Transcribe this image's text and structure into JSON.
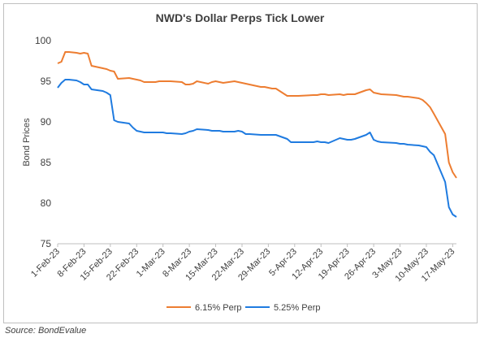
{
  "source_text": "Source: BondEvalue",
  "colors": {
    "series_1": "#ED7D31",
    "series_2": "#1F7BE0",
    "axis": "#bfbfbf"
  },
  "chart_data": {
    "type": "line",
    "title": "NWD's Dollar Perps Tick Lower",
    "xlabel": "",
    "ylabel": "Bond Prices",
    "ylim": [
      75,
      100
    ],
    "yticks": [
      75,
      80,
      85,
      90,
      95,
      100
    ],
    "xlim": [
      "2023-02-01",
      "2023-05-18"
    ],
    "x_tick_labels": [
      "1-Feb-23",
      "8-Feb-23",
      "15-Feb-23",
      "22-Feb-23",
      "1-Mar-23",
      "8-Mar-23",
      "15-Mar-23",
      "22-Mar-23",
      "29-Mar-23",
      "5-Apr-23",
      "12-Apr-23",
      "19-Apr-23",
      "26-Apr-23",
      "3-May-23",
      "10-May-23",
      "17-May-23"
    ],
    "grid": false,
    "legend_position": "bottom",
    "series": [
      {
        "name": "6.15% Perp",
        "x": [
          "2023-02-01",
          "2023-02-02",
          "2023-02-03",
          "2023-02-04",
          "2023-02-06",
          "2023-02-07",
          "2023-02-08",
          "2023-02-09",
          "2023-02-10",
          "2023-02-13",
          "2023-02-14",
          "2023-02-15",
          "2023-02-16",
          "2023-02-17",
          "2023-02-20",
          "2023-02-21",
          "2023-02-22",
          "2023-02-23",
          "2023-02-24",
          "2023-02-27",
          "2023-02-28",
          "2023-03-01",
          "2023-03-02",
          "2023-03-03",
          "2023-03-06",
          "2023-03-07",
          "2023-03-08",
          "2023-03-09",
          "2023-03-10",
          "2023-03-13",
          "2023-03-14",
          "2023-03-15",
          "2023-03-16",
          "2023-03-17",
          "2023-03-20",
          "2023-03-21",
          "2023-03-22",
          "2023-03-23",
          "2023-03-24",
          "2023-03-27",
          "2023-03-28",
          "2023-03-29",
          "2023-03-30",
          "2023-03-31",
          "2023-04-03",
          "2023-04-04",
          "2023-04-05",
          "2023-04-06",
          "2023-04-10",
          "2023-04-11",
          "2023-04-12",
          "2023-04-13",
          "2023-04-14",
          "2023-04-17",
          "2023-04-18",
          "2023-04-19",
          "2023-04-20",
          "2023-04-21",
          "2023-04-24",
          "2023-04-25",
          "2023-04-26",
          "2023-04-27",
          "2023-04-28",
          "2023-05-02",
          "2023-05-03",
          "2023-05-04",
          "2023-05-05",
          "2023-05-08",
          "2023-05-09",
          "2023-05-10",
          "2023-05-11",
          "2023-05-12",
          "2023-05-15",
          "2023-05-16",
          "2023-05-17",
          "2023-05-18"
        ],
        "y": [
          97.2,
          97.4,
          98.6,
          98.6,
          98.5,
          98.4,
          98.5,
          98.4,
          96.9,
          96.6,
          96.5,
          96.3,
          96.2,
          95.3,
          95.4,
          95.3,
          95.2,
          95.1,
          94.9,
          94.9,
          95.0,
          95.0,
          95.0,
          95.0,
          94.9,
          94.6,
          94.6,
          94.7,
          95.0,
          94.7,
          94.9,
          95.0,
          94.9,
          94.8,
          95.0,
          94.9,
          94.8,
          94.7,
          94.6,
          94.3,
          94.3,
          94.2,
          94.1,
          94.1,
          93.2,
          93.2,
          93.2,
          93.2,
          93.3,
          93.3,
          93.4,
          93.4,
          93.3,
          93.4,
          93.3,
          93.4,
          93.4,
          93.4,
          93.9,
          94.0,
          93.6,
          93.5,
          93.4,
          93.3,
          93.2,
          93.1,
          93.1,
          92.9,
          92.7,
          92.3,
          91.8,
          91.0,
          88.5,
          85.0,
          83.8,
          83.1
        ]
      },
      {
        "name": "5.25% Perp",
        "x": [
          "2023-02-01",
          "2023-02-02",
          "2023-02-03",
          "2023-02-04",
          "2023-02-06",
          "2023-02-07",
          "2023-02-08",
          "2023-02-09",
          "2023-02-10",
          "2023-02-13",
          "2023-02-14",
          "2023-02-15",
          "2023-02-16",
          "2023-02-17",
          "2023-02-20",
          "2023-02-21",
          "2023-02-22",
          "2023-02-23",
          "2023-02-24",
          "2023-02-27",
          "2023-02-28",
          "2023-03-01",
          "2023-03-02",
          "2023-03-03",
          "2023-03-06",
          "2023-03-07",
          "2023-03-08",
          "2023-03-09",
          "2023-03-10",
          "2023-03-13",
          "2023-03-14",
          "2023-03-15",
          "2023-03-16",
          "2023-03-17",
          "2023-03-20",
          "2023-03-21",
          "2023-03-22",
          "2023-03-23",
          "2023-03-24",
          "2023-03-27",
          "2023-03-28",
          "2023-03-29",
          "2023-03-30",
          "2023-03-31",
          "2023-04-03",
          "2023-04-04",
          "2023-04-05",
          "2023-04-06",
          "2023-04-10",
          "2023-04-11",
          "2023-04-12",
          "2023-04-13",
          "2023-04-14",
          "2023-04-17",
          "2023-04-18",
          "2023-04-19",
          "2023-04-20",
          "2023-04-21",
          "2023-04-24",
          "2023-04-25",
          "2023-04-26",
          "2023-04-27",
          "2023-04-28",
          "2023-05-02",
          "2023-05-03",
          "2023-05-04",
          "2023-05-05",
          "2023-05-08",
          "2023-05-09",
          "2023-05-10",
          "2023-05-11",
          "2023-05-12",
          "2023-05-15",
          "2023-05-16",
          "2023-05-17",
          "2023-05-18"
        ],
        "y": [
          94.2,
          94.8,
          95.2,
          95.2,
          95.1,
          94.9,
          94.6,
          94.6,
          94.0,
          93.8,
          93.6,
          93.3,
          90.2,
          90.0,
          89.8,
          89.3,
          88.9,
          88.8,
          88.7,
          88.7,
          88.7,
          88.7,
          88.6,
          88.6,
          88.5,
          88.6,
          88.8,
          88.9,
          89.1,
          89.0,
          88.9,
          88.9,
          88.9,
          88.8,
          88.8,
          88.9,
          88.8,
          88.5,
          88.5,
          88.4,
          88.4,
          88.4,
          88.4,
          88.4,
          87.9,
          87.5,
          87.5,
          87.5,
          87.5,
          87.6,
          87.5,
          87.5,
          87.4,
          88.0,
          87.9,
          87.8,
          87.8,
          87.9,
          88.4,
          88.7,
          87.8,
          87.6,
          87.5,
          87.4,
          87.3,
          87.3,
          87.2,
          87.1,
          87.0,
          86.9,
          86.3,
          85.9,
          82.6,
          79.5,
          78.6,
          78.3
        ]
      }
    ]
  }
}
